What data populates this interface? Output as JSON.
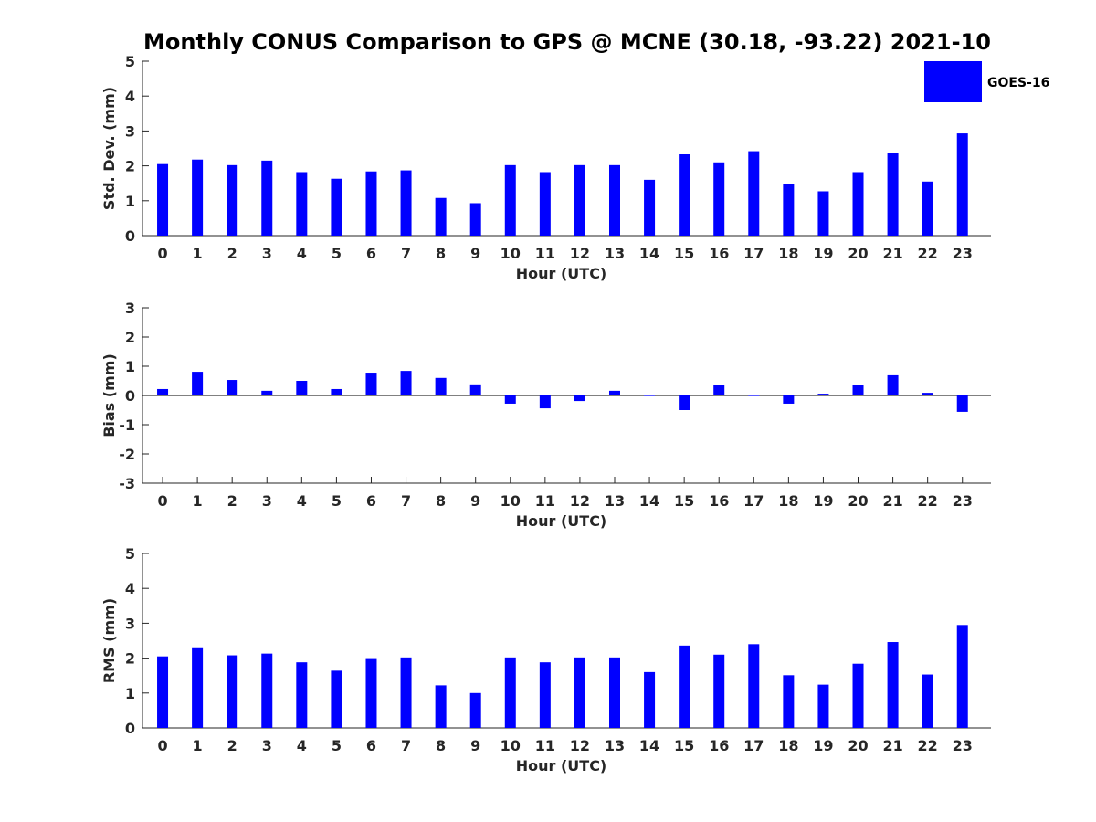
{
  "chart_data": {
    "title": "Monthly CONUS Comparison to GPS @ MCNE (30.18, -93.22) 2021-10",
    "bar_color": "#0000ff",
    "legend": {
      "label": "GOES-16",
      "placement": "top-right"
    },
    "panels": [
      {
        "type": "bar",
        "ylabel": "Std. Dev. (mm)",
        "xlabel": "Hour (UTC)",
        "ylim": [
          0,
          5
        ],
        "yticks": [
          0,
          1,
          2,
          3,
          4,
          5
        ],
        "categories": [
          "0",
          "1",
          "2",
          "3",
          "4",
          "5",
          "6",
          "7",
          "8",
          "9",
          "10",
          "11",
          "12",
          "13",
          "14",
          "15",
          "16",
          "17",
          "18",
          "19",
          "20",
          "21",
          "22",
          "23"
        ],
        "series": [
          {
            "name": "GOES-16",
            "values": [
              2.05,
              2.18,
              2.02,
              2.15,
              1.82,
              1.63,
              1.84,
              1.87,
              1.08,
              0.93,
              2.02,
              1.82,
              2.02,
              2.02,
              1.6,
              2.33,
              2.1,
              2.42,
              1.47,
              1.27,
              1.82,
              2.38,
              1.55,
              2.93
            ]
          }
        ]
      },
      {
        "type": "bar",
        "ylabel": "Bias (mm)",
        "xlabel": "Hour (UTC)",
        "ylim": [
          -3,
          3
        ],
        "yticks": [
          -3,
          -2,
          -1,
          0,
          1,
          2,
          3
        ],
        "zero_line": true,
        "categories": [
          "0",
          "1",
          "2",
          "3",
          "4",
          "5",
          "6",
          "7",
          "8",
          "9",
          "10",
          "11",
          "12",
          "13",
          "14",
          "15",
          "16",
          "17",
          "18",
          "19",
          "20",
          "21",
          "22",
          "23"
        ],
        "series": [
          {
            "name": "GOES-16",
            "values": [
              0.22,
              0.81,
              0.53,
              0.16,
              0.5,
              0.22,
              0.78,
              0.84,
              0.6,
              0.38,
              -0.28,
              -0.44,
              -0.19,
              0.16,
              -0.02,
              -0.5,
              0.35,
              -0.02,
              -0.28,
              0.06,
              0.35,
              0.69,
              0.09,
              -0.56
            ]
          }
        ]
      },
      {
        "type": "bar",
        "ylabel": "RMS (mm)",
        "xlabel": "Hour (UTC)",
        "ylim": [
          0,
          5
        ],
        "yticks": [
          0,
          1,
          2,
          3,
          4,
          5
        ],
        "categories": [
          "0",
          "1",
          "2",
          "3",
          "4",
          "5",
          "6",
          "7",
          "8",
          "9",
          "10",
          "11",
          "12",
          "13",
          "14",
          "15",
          "16",
          "17",
          "18",
          "19",
          "20",
          "21",
          "22",
          "23"
        ],
        "series": [
          {
            "name": "GOES-16",
            "values": [
              2.05,
              2.31,
              2.08,
              2.13,
              1.88,
              1.64,
              2.0,
              2.02,
              1.22,
              1.0,
              2.02,
              1.88,
              2.02,
              2.02,
              1.6,
              2.36,
              2.1,
              2.4,
              1.51,
              1.24,
              1.84,
              2.46,
              1.53,
              2.95
            ]
          }
        ]
      }
    ]
  }
}
